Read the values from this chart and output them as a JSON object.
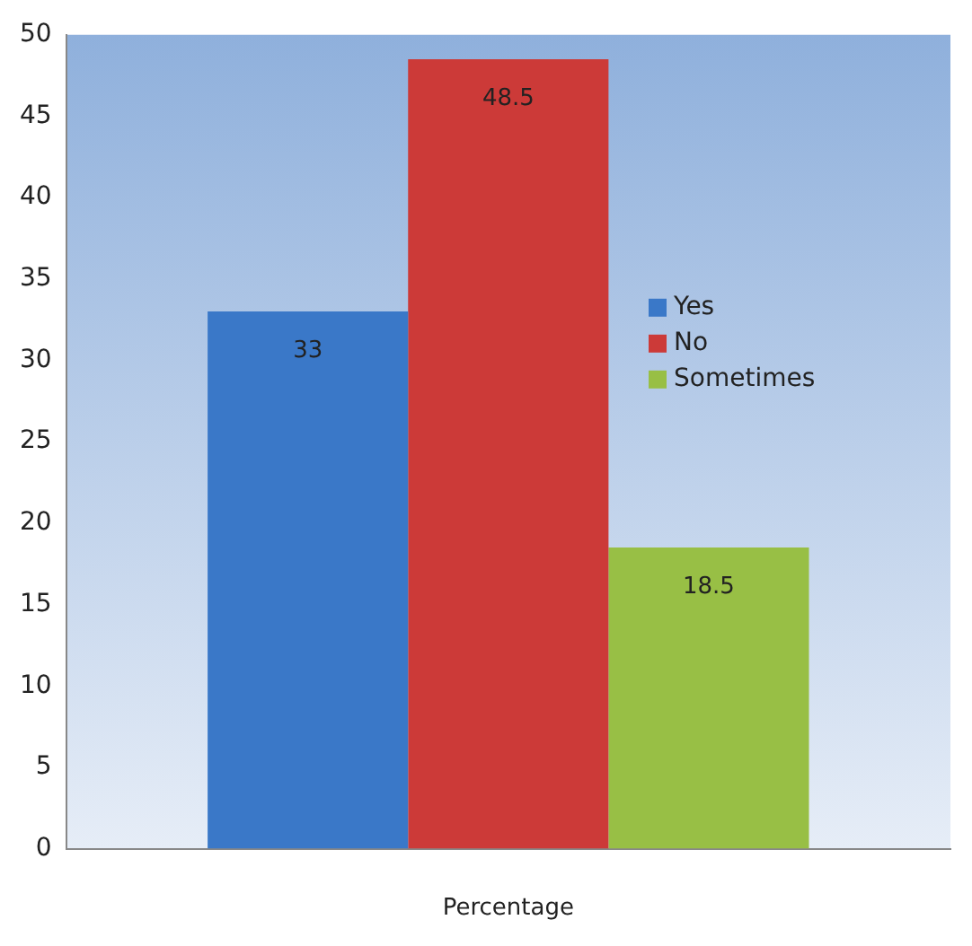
{
  "chart_data": {
    "type": "bar",
    "xlabel": "Percentage",
    "categories": [
      null
    ],
    "series": [
      {
        "name": "Yes",
        "color": "#3a78c8",
        "values": [
          33
        ]
      },
      {
        "name": "No",
        "color": "#cc3a38",
        "values": [
          48.5
        ]
      },
      {
        "name": "Sometimes",
        "color": "#98bf45",
        "values": [
          18.5
        ]
      }
    ],
    "ylim": [
      0,
      50
    ],
    "yticks": [
      0,
      5,
      10,
      15,
      20,
      25,
      30,
      35,
      40,
      45,
      50
    ],
    "grid": false,
    "legend": "right",
    "data_labels": true
  }
}
